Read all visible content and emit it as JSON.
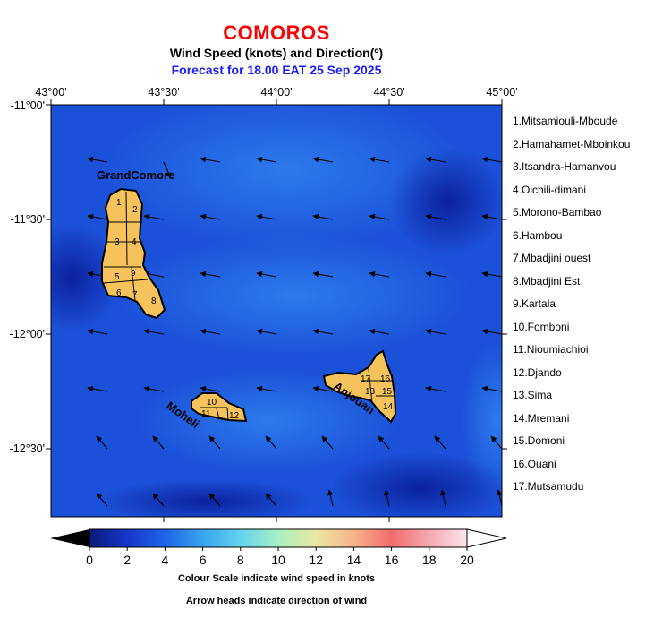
{
  "title": "COMOROS",
  "subtitle": "Wind Speed (knots) and Direction(º)",
  "forecast": "Forecast for  18.00 EAT 25 Sep 2025",
  "lon_labels": [
    "43°00'",
    "43°30'",
    "44°00'",
    "44°30'",
    "45°00'"
  ],
  "lat_labels": [
    "-11°00'",
    "-11°30'",
    "-12°00'",
    "-12°30'"
  ],
  "regions": [
    "1.Mitsamiouli-Mboude",
    "2.Hamahamet-Mboinkou",
    "3.Itsandra-Hamanvou",
    "4.Oichili-dimani",
    "5.Morono-Bambao",
    "6.Hambou",
    "7.Mbadjini ouest",
    "8.Mbadjini Est",
    "9.Kartala",
    "10.Fomboni",
    "11.Nioumiachioi",
    "12.Djando",
    "13.Sima",
    "14.Mremani",
    "15.Domoni",
    "16.Ouani",
    "17.Mutsamudu"
  ],
  "island_labels": {
    "grande_comore": "GrandComore",
    "moheli": "Moheli",
    "anjouan": "Anjouan"
  },
  "district_numbers": {
    "gc": [
      "1",
      "2",
      "3",
      "4",
      "5",
      "9",
      "6",
      "7",
      "8"
    ],
    "moheli": [
      "10",
      "11",
      "12"
    ],
    "anjouan": [
      "17",
      "16",
      "13",
      "15",
      "14"
    ]
  },
  "colorbar": {
    "ticks": [
      "0",
      "2",
      "4",
      "6",
      "8",
      "10",
      "12",
      "14",
      "16",
      "18",
      "20"
    ],
    "colors": [
      "#0a1a7a",
      "#1537c9",
      "#1f63e8",
      "#38a4ef",
      "#63d3ee",
      "#a8f0c4",
      "#e9e8a0",
      "#f7b38a",
      "#f26d6d",
      "#f5a8b2",
      "#fce4ea"
    ]
  },
  "caption_scale": "Colour Scale indicate wind speed in knots",
  "caption_arrows": "Arrow heads indicate direction of wind",
  "colors": {
    "island_fill": "#f5c25c",
    "title": "#ff0000",
    "forecast": "#1a1aff"
  }
}
